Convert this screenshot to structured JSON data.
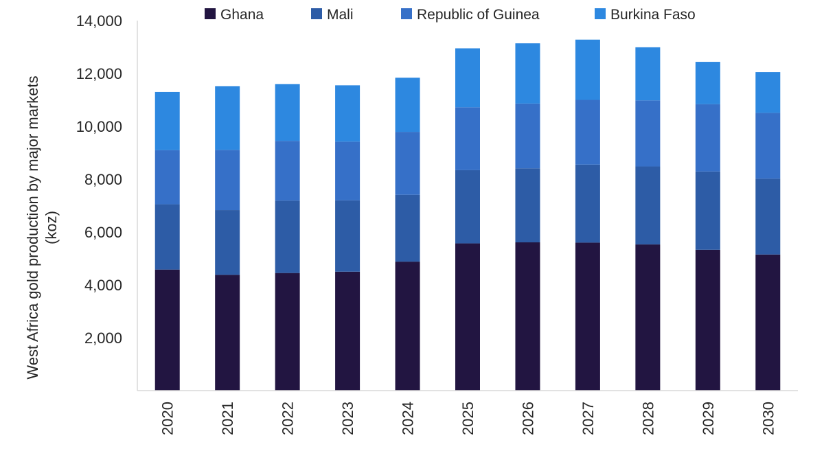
{
  "chart_data": {
    "type": "bar",
    "stacked": true,
    "title": "",
    "xlabel": "",
    "ylabel": "West Africa gold production by major markets (koz)",
    "ylabel_lines": [
      "West Africa gold production by major markets",
      "(koz)"
    ],
    "ylim": [
      0,
      14000
    ],
    "yticks": [
      2000,
      4000,
      6000,
      8000,
      10000,
      12000,
      14000
    ],
    "ytick_labels": [
      "2,000",
      "4,000",
      "6,000",
      "8,000",
      "10,000",
      "12,000",
      "14,000"
    ],
    "grid": false,
    "legend_position": "top",
    "categories": [
      "2020",
      "2021",
      "2022",
      "2023",
      "2024",
      "2025",
      "2026",
      "2027",
      "2028",
      "2029",
      "2030"
    ],
    "series": [
      {
        "name": "Ghana",
        "color": "#221541",
        "values": [
          4580,
          4380,
          4450,
          4500,
          4880,
          5570,
          5610,
          5600,
          5530,
          5330,
          5150
        ]
      },
      {
        "name": "Mali",
        "color": "#2d5ca6",
        "values": [
          2470,
          2450,
          2740,
          2700,
          2530,
          2770,
          2800,
          2950,
          2950,
          2960,
          2870
        ]
      },
      {
        "name": "Republic of Guinea",
        "color": "#3670c8",
        "values": [
          2050,
          2280,
          2260,
          2220,
          2380,
          2380,
          2450,
          2450,
          2500,
          2550,
          2490
        ]
      },
      {
        "name": "Burkina Faso",
        "color": "#2d88e0",
        "values": [
          2200,
          2410,
          2150,
          2130,
          2050,
          2230,
          2280,
          2280,
          2010,
          1600,
          1540
        ]
      }
    ]
  }
}
